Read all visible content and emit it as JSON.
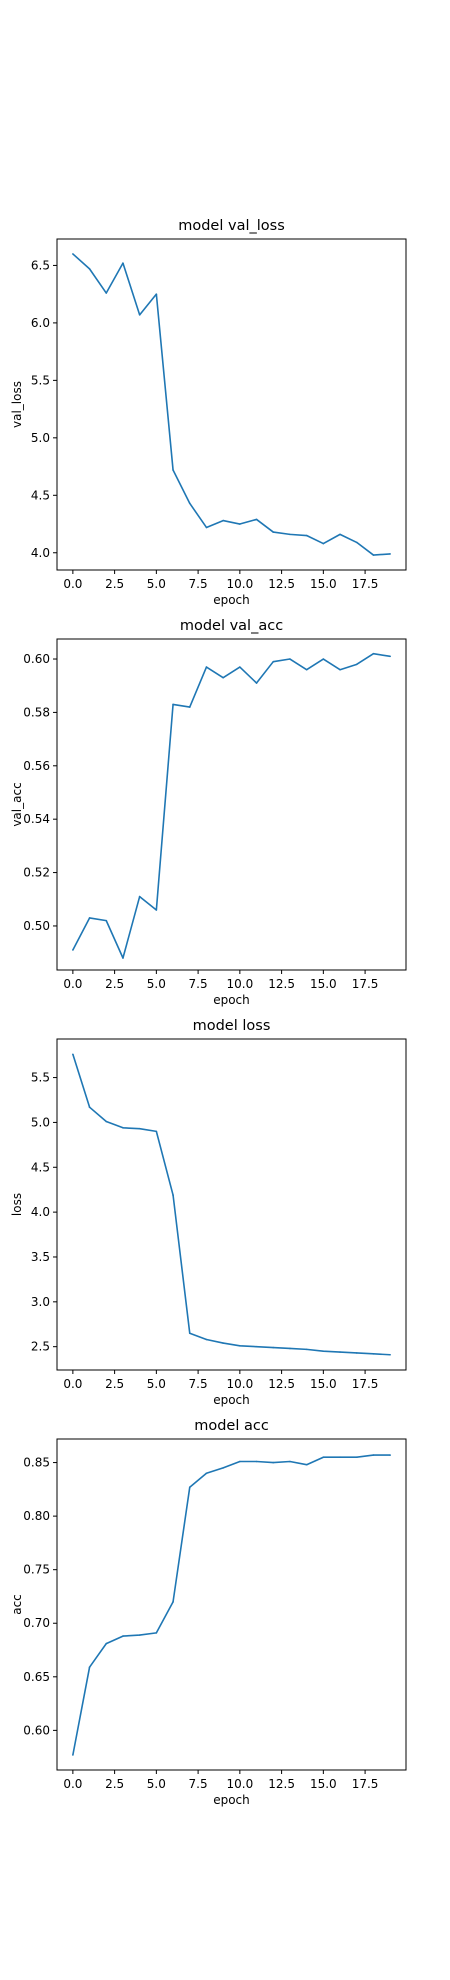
{
  "chart_data": [
    {
      "type": "line",
      "title": "model val_loss",
      "xlabel": "epoch",
      "ylabel": "val_loss",
      "xlim": [
        -0.95,
        19.95
      ],
      "ylim": [
        3.85,
        6.73
      ],
      "xticks": [
        0.0,
        2.5,
        5.0,
        7.5,
        10.0,
        12.5,
        15.0,
        17.5
      ],
      "xtick_labels": [
        "0.0",
        "2.5",
        "5.0",
        "7.5",
        "10.0",
        "12.5",
        "15.0",
        "17.5"
      ],
      "yticks": [
        4.0,
        4.5,
        5.0,
        5.5,
        6.0,
        6.5
      ],
      "ytick_labels": [
        "4.0",
        "4.5",
        "5.0",
        "5.5",
        "6.0",
        "6.5"
      ],
      "grid": false,
      "color": "#1f77b4",
      "x": [
        0,
        1,
        2,
        3,
        4,
        5,
        6,
        7,
        8,
        9,
        10,
        11,
        12,
        13,
        14,
        15,
        16,
        17,
        18,
        19
      ],
      "values": [
        6.6,
        6.47,
        6.26,
        6.52,
        6.07,
        6.25,
        4.72,
        4.43,
        4.22,
        4.28,
        4.25,
        4.29,
        4.18,
        4.16,
        4.15,
        4.08,
        4.16,
        4.09,
        3.98,
        3.99
      ]
    },
    {
      "type": "line",
      "title": "model val_acc",
      "xlabel": "epoch",
      "ylabel": "val_acc",
      "xlim": [
        -0.95,
        19.95
      ],
      "ylim": [
        0.4835,
        0.6075
      ],
      "xticks": [
        0.0,
        2.5,
        5.0,
        7.5,
        10.0,
        12.5,
        15.0,
        17.5
      ],
      "xtick_labels": [
        "0.0",
        "2.5",
        "5.0",
        "7.5",
        "10.0",
        "12.5",
        "15.0",
        "17.5"
      ],
      "yticks": [
        0.5,
        0.52,
        0.54,
        0.56,
        0.58,
        0.6
      ],
      "ytick_labels": [
        "0.50",
        "0.52",
        "0.54",
        "0.56",
        "0.58",
        "0.60"
      ],
      "grid": false,
      "color": "#1f77b4",
      "x": [
        0,
        1,
        2,
        3,
        4,
        5,
        6,
        7,
        8,
        9,
        10,
        11,
        12,
        13,
        14,
        15,
        16,
        17,
        18,
        19
      ],
      "values": [
        0.491,
        0.503,
        0.502,
        0.488,
        0.511,
        0.506,
        0.583,
        0.582,
        0.597,
        0.593,
        0.597,
        0.591,
        0.599,
        0.6,
        0.596,
        0.6,
        0.596,
        0.598,
        0.602,
        0.601
      ]
    },
    {
      "type": "line",
      "title": "model loss",
      "xlabel": "epoch",
      "ylabel": "loss",
      "xlim": [
        -0.95,
        19.95
      ],
      "ylim": [
        2.24,
        5.93
      ],
      "xticks": [
        0.0,
        2.5,
        5.0,
        7.5,
        10.0,
        12.5,
        15.0,
        17.5
      ],
      "xtick_labels": [
        "0.0",
        "2.5",
        "5.0",
        "7.5",
        "10.0",
        "12.5",
        "15.0",
        "17.5"
      ],
      "yticks": [
        2.5,
        3.0,
        3.5,
        4.0,
        4.5,
        5.0,
        5.5
      ],
      "ytick_labels": [
        "2.5",
        "3.0",
        "3.5",
        "4.0",
        "4.5",
        "5.0",
        "5.5"
      ],
      "grid": false,
      "color": "#1f77b4",
      "x": [
        0,
        1,
        2,
        3,
        4,
        5,
        6,
        7,
        8,
        9,
        10,
        11,
        12,
        13,
        14,
        15,
        16,
        17,
        18,
        19
      ],
      "values": [
        5.76,
        5.17,
        5.01,
        4.94,
        4.93,
        4.9,
        4.19,
        2.65,
        2.58,
        2.54,
        2.51,
        2.5,
        2.49,
        2.48,
        2.47,
        2.45,
        2.44,
        2.43,
        2.42,
        2.41
      ]
    },
    {
      "type": "line",
      "title": "model acc",
      "xlabel": "epoch",
      "ylabel": "acc",
      "xlim": [
        -0.95,
        19.95
      ],
      "ylim": [
        0.563,
        0.872
      ],
      "xticks": [
        0.0,
        2.5,
        5.0,
        7.5,
        10.0,
        12.5,
        15.0,
        17.5
      ],
      "xtick_labels": [
        "0.0",
        "2.5",
        "5.0",
        "7.5",
        "10.0",
        "12.5",
        "15.0",
        "17.5"
      ],
      "yticks": [
        0.6,
        0.65,
        0.7,
        0.75,
        0.8,
        0.85
      ],
      "ytick_labels": [
        "0.60",
        "0.65",
        "0.70",
        "0.75",
        "0.80",
        "0.85"
      ],
      "grid": false,
      "color": "#1f77b4",
      "x": [
        0,
        1,
        2,
        3,
        4,
        5,
        6,
        7,
        8,
        9,
        10,
        11,
        12,
        13,
        14,
        15,
        16,
        17,
        18,
        19
      ],
      "values": [
        0.577,
        0.659,
        0.681,
        0.688,
        0.689,
        0.691,
        0.72,
        0.827,
        0.84,
        0.845,
        0.851,
        0.851,
        0.85,
        0.851,
        0.848,
        0.855,
        0.855,
        0.855,
        0.857,
        0.857
      ]
    }
  ]
}
